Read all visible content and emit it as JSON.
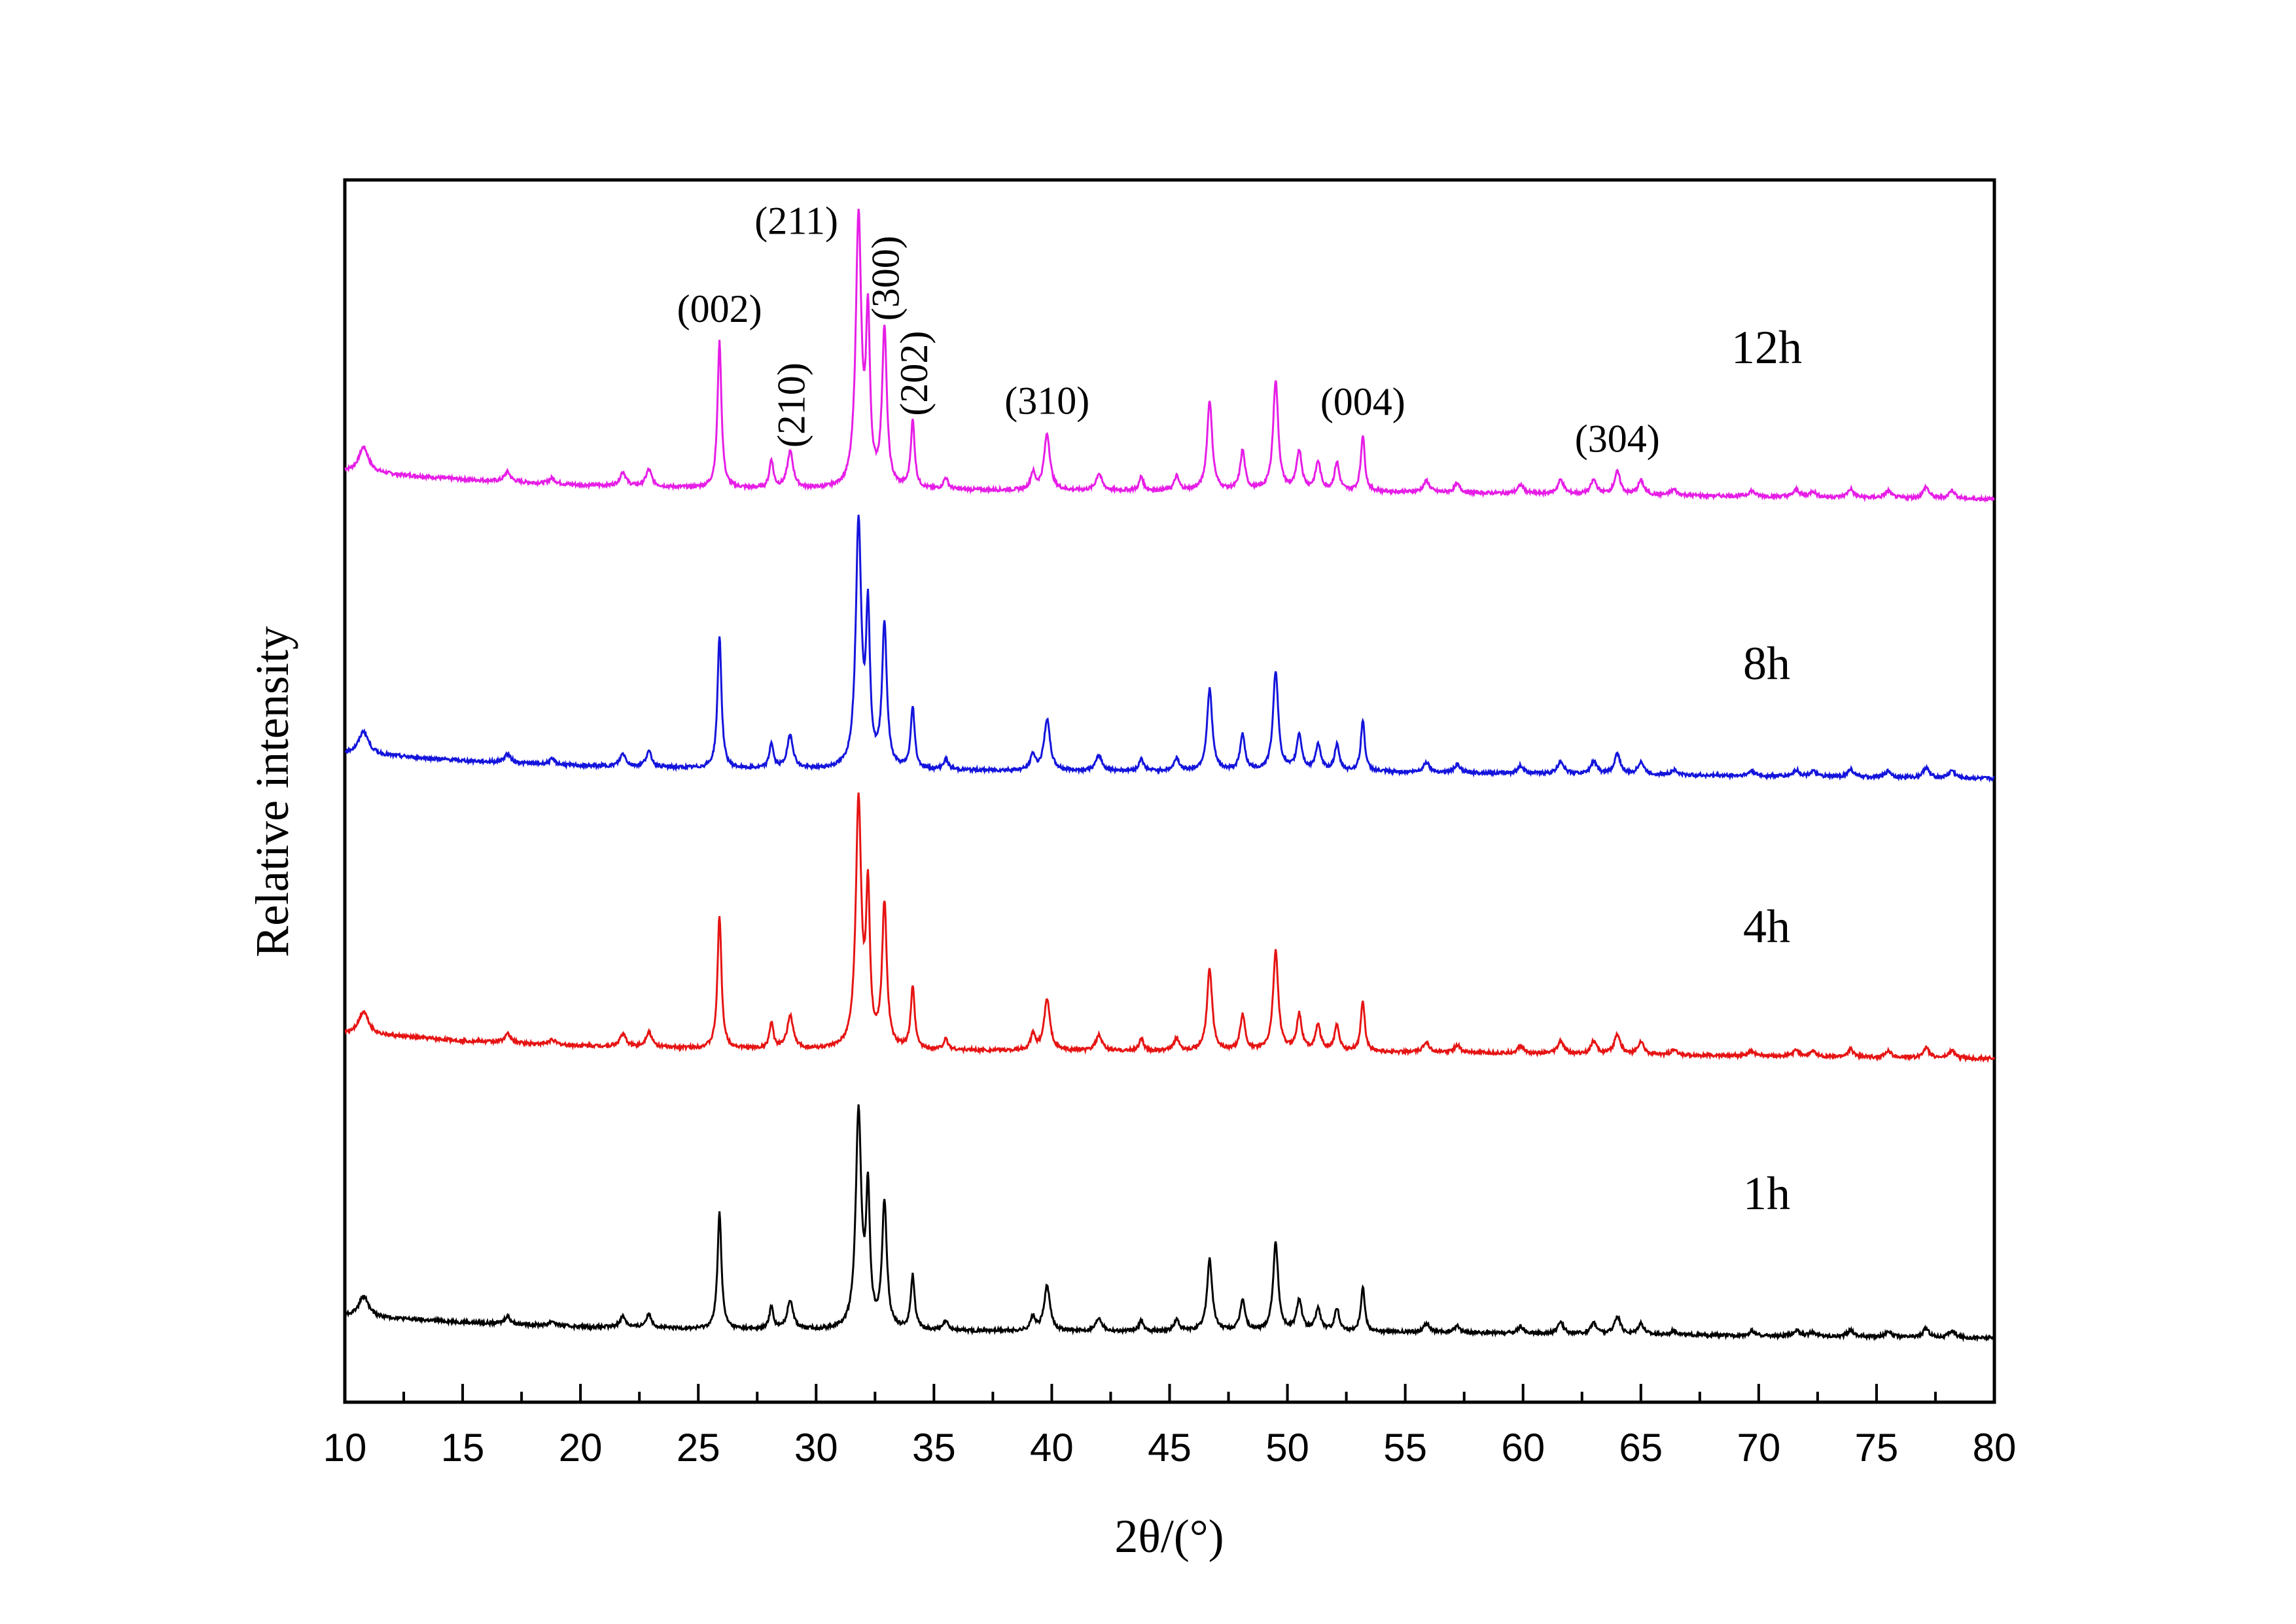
{
  "chart_data": {
    "type": "line",
    "title": "",
    "xlabel": "2θ/(°)",
    "ylabel": "Relative intensity",
    "xlim": [
      10,
      80
    ],
    "x_ticks": [
      "10",
      "15",
      "20",
      "25",
      "30",
      "35",
      "40",
      "45",
      "50",
      "55",
      "60",
      "65",
      "70",
      "75",
      "80"
    ],
    "y_ticks_shown": false,
    "grid": false,
    "legend": "none",
    "baseline": [
      {
        "x": 10.0,
        "y": 0.1
      },
      {
        "x": 15.0,
        "y": 0.07
      },
      {
        "x": 20.0,
        "y": 0.05
      },
      {
        "x": 25.0,
        "y": 0.04
      },
      {
        "x": 30.0,
        "y": 0.035
      },
      {
        "x": 40.0,
        "y": 0.03
      },
      {
        "x": 50.0,
        "y": 0.03
      },
      {
        "x": 60.0,
        "y": 0.02
      },
      {
        "x": 70.0,
        "y": 0.01
      },
      {
        "x": 80.0,
        "y": 0.0
      }
    ],
    "peaks": [
      {
        "x": 10.8,
        "h": 0.09,
        "w": 0.25
      },
      {
        "x": 16.9,
        "h": 0.035,
        "w": 0.15
      },
      {
        "x": 18.8,
        "h": 0.02,
        "w": 0.15
      },
      {
        "x": 21.8,
        "h": 0.05,
        "w": 0.15
      },
      {
        "x": 22.9,
        "h": 0.06,
        "w": 0.15
      },
      {
        "x": 25.9,
        "h": 0.52,
        "w": 0.1
      },
      {
        "x": 28.1,
        "h": 0.1,
        "w": 0.1
      },
      {
        "x": 28.9,
        "h": 0.13,
        "w": 0.15
      },
      {
        "x": 31.8,
        "h": 0.96,
        "w": 0.14
      },
      {
        "x": 32.2,
        "h": 0.58,
        "w": 0.1
      },
      {
        "x": 32.9,
        "h": 0.56,
        "w": 0.12
      },
      {
        "x": 34.1,
        "h": 0.24,
        "w": 0.1
      },
      {
        "x": 35.5,
        "h": 0.04,
        "w": 0.12
      },
      {
        "x": 39.2,
        "h": 0.06,
        "w": 0.12
      },
      {
        "x": 39.8,
        "h": 0.2,
        "w": 0.15
      },
      {
        "x": 42.0,
        "h": 0.06,
        "w": 0.15
      },
      {
        "x": 43.8,
        "h": 0.05,
        "w": 0.1
      },
      {
        "x": 45.3,
        "h": 0.05,
        "w": 0.12
      },
      {
        "x": 46.7,
        "h": 0.32,
        "w": 0.13
      },
      {
        "x": 48.1,
        "h": 0.14,
        "w": 0.12
      },
      {
        "x": 49.5,
        "h": 0.39,
        "w": 0.13
      },
      {
        "x": 50.5,
        "h": 0.14,
        "w": 0.13
      },
      {
        "x": 51.3,
        "h": 0.1,
        "w": 0.13
      },
      {
        "x": 52.1,
        "h": 0.1,
        "w": 0.12
      },
      {
        "x": 53.2,
        "h": 0.2,
        "w": 0.1
      },
      {
        "x": 55.9,
        "h": 0.04,
        "w": 0.15
      },
      {
        "x": 57.2,
        "h": 0.03,
        "w": 0.15
      },
      {
        "x": 59.9,
        "h": 0.03,
        "w": 0.15
      },
      {
        "x": 61.6,
        "h": 0.05,
        "w": 0.15
      },
      {
        "x": 63.0,
        "h": 0.05,
        "w": 0.15
      },
      {
        "x": 64.0,
        "h": 0.08,
        "w": 0.15
      },
      {
        "x": 65.0,
        "h": 0.05,
        "w": 0.15
      },
      {
        "x": 66.4,
        "h": 0.02,
        "w": 0.15
      },
      {
        "x": 69.7,
        "h": 0.02,
        "w": 0.15
      },
      {
        "x": 71.6,
        "h": 0.025,
        "w": 0.15
      },
      {
        "x": 72.3,
        "h": 0.02,
        "w": 0.15
      },
      {
        "x": 73.9,
        "h": 0.03,
        "w": 0.15
      },
      {
        "x": 75.5,
        "h": 0.025,
        "w": 0.15
      },
      {
        "x": 77.1,
        "h": 0.04,
        "w": 0.15
      },
      {
        "x": 78.2,
        "h": 0.03,
        "w": 0.15
      }
    ],
    "series": [
      {
        "name": "12h",
        "color": "#e61ee6",
        "offset": 3,
        "scale": 1.0
      },
      {
        "name": "8h",
        "color": "#1414dc",
        "offset": 2,
        "scale": 0.91
      },
      {
        "name": "4h",
        "color": "#e61414",
        "offset": 1,
        "scale": 0.91
      },
      {
        "name": "1h",
        "color": "#000000",
        "offset": 0,
        "scale": 0.8
      }
    ],
    "annotations": [
      {
        "text": "(002)",
        "x": 25.9
      },
      {
        "text": "(211)",
        "x": 31.8
      },
      {
        "text": "(210)",
        "x": 28.9,
        "rotated": true
      },
      {
        "text": "(300)",
        "x": 32.9,
        "rotated": true
      },
      {
        "text": "(202)",
        "x": 34.1,
        "rotated": true
      },
      {
        "text": "(310)",
        "x": 39.8
      },
      {
        "text": "(004)",
        "x": 53.2
      },
      {
        "text": "(304)",
        "x": 64.0
      }
    ]
  }
}
